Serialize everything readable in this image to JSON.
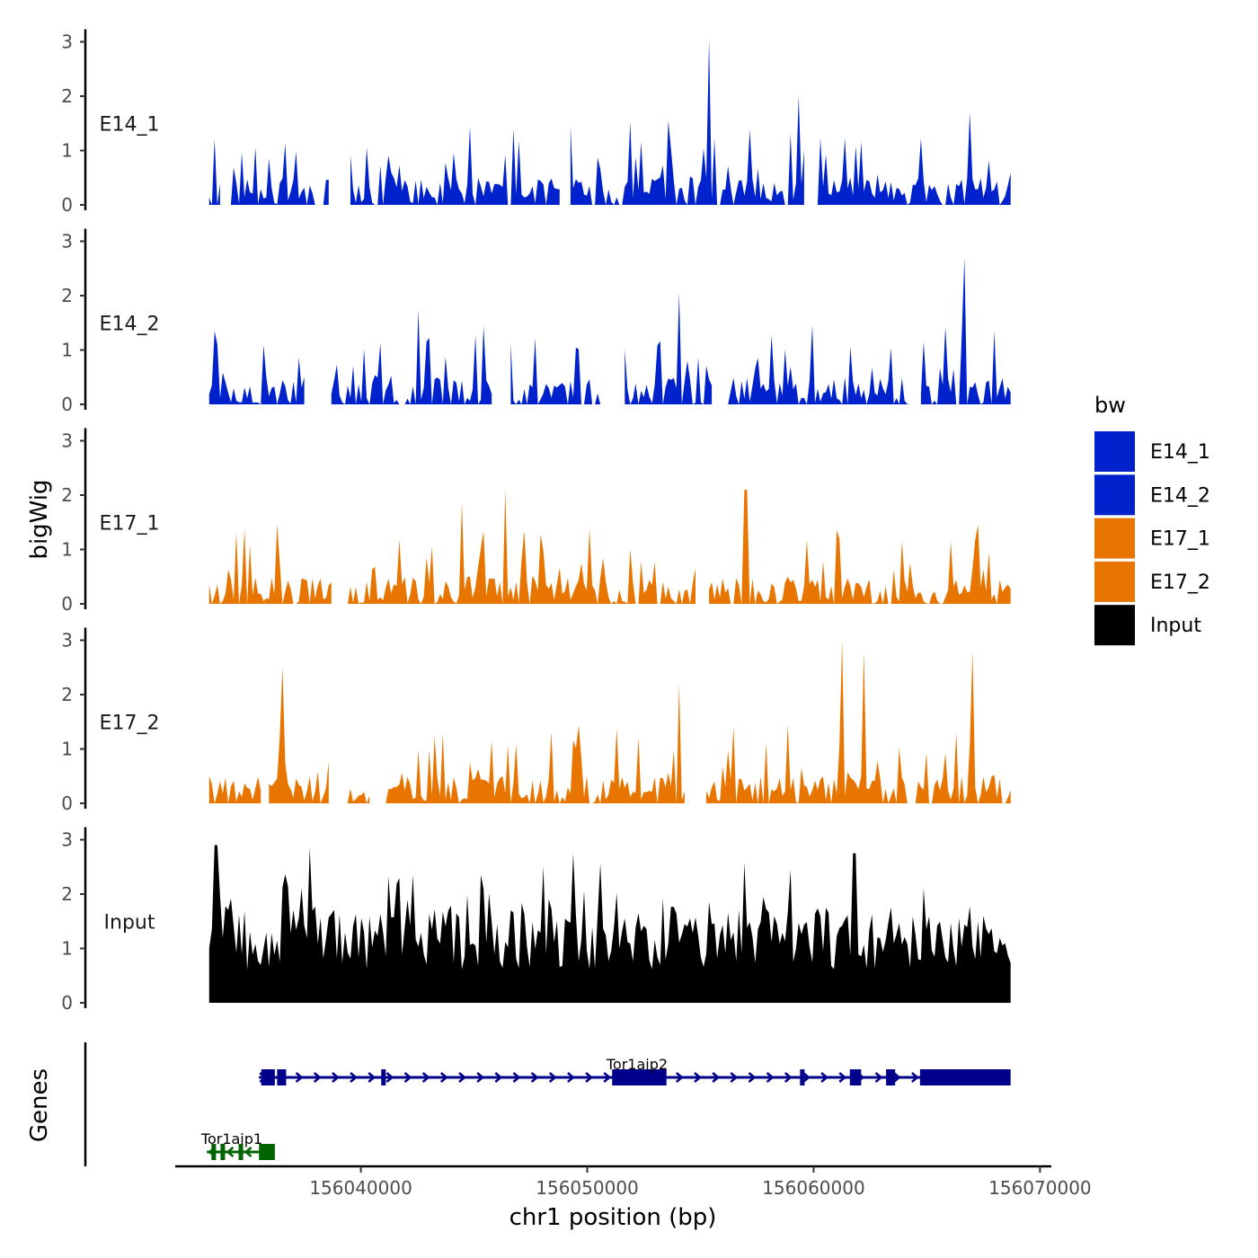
{
  "chart_data": {
    "type": "area",
    "panels": [
      {
        "name": "E14_1",
        "color": "#0022cc",
        "peak": 3.05,
        "seed": 11,
        "gaps": [
          [
            156033800,
            156034200
          ],
          [
            156038600,
            156039000
          ],
          [
            156039100,
            156039500
          ],
          [
            156048800,
            156049200
          ],
          [
            156059700,
            156060100
          ]
        ],
        "peaks": [
          [
            156055350,
            3.05
          ],
          [
            156059350,
            2.0
          ],
          [
            156066900,
            1.7
          ],
          [
            156049250,
            1.45
          ]
        ]
      },
      {
        "name": "E14_2",
        "color": "#0022cc",
        "peak": 2.7,
        "seed": 23,
        "gaps": [
          [
            156037600,
            156038600
          ],
          [
            156045800,
            156046500
          ],
          [
            156050850,
            156051600
          ],
          [
            156055600,
            156056100
          ],
          [
            156064300,
            156064700
          ]
        ],
        "peaks": [
          [
            156066700,
            2.7
          ],
          [
            156054100,
            2.05
          ],
          [
            156042500,
            1.75
          ]
        ]
      },
      {
        "name": "E17_1",
        "color": "#e87500",
        "peak": 2.1,
        "seed": 37,
        "gaps": [
          [
            156038800,
            156039300
          ],
          [
            156054900,
            156055300
          ]
        ],
        "peaks": [
          [
            156046400,
            2.1
          ],
          [
            156057000,
            2.1
          ],
          [
            156044500,
            1.85
          ]
        ]
      },
      {
        "name": "E17_2",
        "color": "#e87500",
        "peak": 3.0,
        "seed": 41,
        "gaps": [
          [
            156035700,
            156035900
          ],
          [
            156038700,
            156039400
          ],
          [
            156040500,
            156041000
          ],
          [
            156054400,
            156055200
          ]
        ],
        "peaks": [
          [
            156061300,
            3.0
          ],
          [
            156062200,
            2.8
          ],
          [
            156067000,
            2.8
          ],
          [
            156036500,
            2.5
          ],
          [
            156054100,
            2.2
          ]
        ]
      },
      {
        "name": "Input",
        "color": "#000000",
        "peak": 2.9,
        "seed": 53,
        "gaps": [],
        "peaks": [
          [
            156033600,
            2.9
          ],
          [
            156037700,
            2.85
          ],
          [
            156049400,
            2.75
          ],
          [
            156061800,
            2.75
          ],
          [
            156059000,
            2.45
          ]
        ],
        "dense": true
      }
    ],
    "series": [
      {
        "name": "E14_1",
        "color": "#0022cc"
      },
      {
        "name": "E14_2",
        "color": "#0022cc"
      },
      {
        "name": "E17_1",
        "color": "#e87500"
      },
      {
        "name": "E17_2",
        "color": "#e87500"
      },
      {
        "name": "Input",
        "color": "#000000"
      }
    ],
    "x_range": [
      156033300,
      156068700
    ],
    "xlim": [
      156031800,
      156070500
    ],
    "xticks": [
      156040000,
      156050000,
      156060000,
      156070000
    ],
    "xtick_labels": [
      "156040000",
      "156050000",
      "156060000",
      "156070000"
    ],
    "ylim": [
      0,
      3
    ],
    "yticks": [
      0,
      1,
      2,
      3
    ],
    "xlabel": "chr1 position (bp)",
    "ylabel": "bigWig",
    "genes_label": "Genes",
    "legend_title": "bw",
    "legend_position": "right",
    "genes": [
      {
        "name": "Tor1aip2",
        "strand": "+",
        "color": "#00008b",
        "start": 156035500,
        "end": 156068700,
        "exons": [
          [
            156035600,
            156036200
          ],
          [
            156036300,
            156036700
          ],
          [
            156040900,
            156041100
          ],
          [
            156051100,
            156053500
          ],
          [
            156059400,
            156059600
          ],
          [
            156061600,
            156062100
          ],
          [
            156063200,
            156063600
          ],
          [
            156064700,
            156068700
          ]
        ]
      },
      {
        "name": "Tor1aip1",
        "strand": "-",
        "color": "#006400",
        "start": 156033200,
        "end": 156036200,
        "exons": [
          [
            156033400,
            156033600
          ],
          [
            156033800,
            156034000
          ],
          [
            156034600,
            156034800
          ],
          [
            156035500,
            156036200
          ]
        ]
      }
    ]
  }
}
